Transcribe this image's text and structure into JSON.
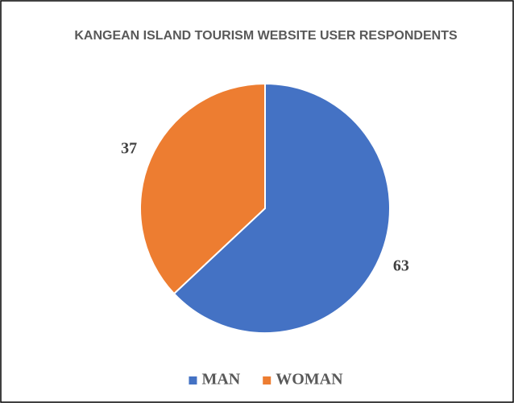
{
  "chart_data": {
    "type": "pie",
    "title": "KANGEAN ISLAND TOURISM WEBSITE USER RESPONDENTS",
    "categories": [
      "MAN",
      "WOMAN"
    ],
    "values": [
      63,
      37
    ],
    "colors": [
      "#4472c4",
      "#ed7d31"
    ],
    "legend": "bottom"
  }
}
